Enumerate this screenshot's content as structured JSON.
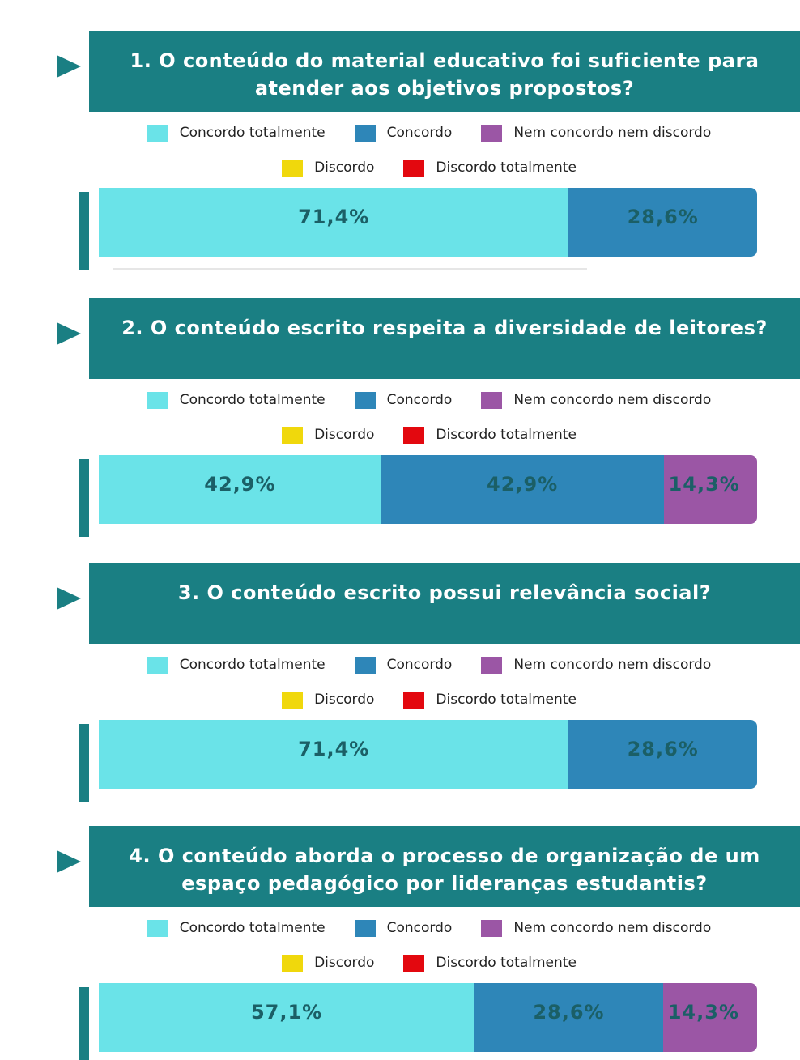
{
  "chart_data": [
    {
      "type": "stacked_bar",
      "title": "1. O conteúdo do material educativo foi suficiente para atender aos objetivos propostos?",
      "xlim": [
        0,
        100
      ],
      "series": [
        {
          "name": "Concordo totalmente",
          "color": "#6ae3e8",
          "values": [
            71.4
          ],
          "value_labels": [
            "71,4%"
          ]
        },
        {
          "name": "Concordo",
          "color": "#2e86b8",
          "values": [
            28.6
          ],
          "value_labels": [
            "28,6%"
          ]
        },
        {
          "name": "Nem concordo nem discordo",
          "color": "#9b56a5",
          "values": [
            0
          ]
        },
        {
          "name": "Discordo",
          "color": "#f0d80c",
          "values": [
            0
          ]
        },
        {
          "name": "Discordo totalmente",
          "color": "#e3080f",
          "values": [
            0
          ]
        }
      ]
    },
    {
      "type": "stacked_bar",
      "title": "2. O conteúdo escrito respeita a diversidade de leitores?",
      "xlim": [
        0,
        100
      ],
      "series": [
        {
          "name": "Concordo totalmente",
          "color": "#6ae3e8",
          "values": [
            42.9
          ],
          "value_labels": [
            "42,9%"
          ]
        },
        {
          "name": "Concordo",
          "color": "#2e86b8",
          "values": [
            42.9
          ],
          "value_labels": [
            "42,9%"
          ]
        },
        {
          "name": "Nem concordo nem discordo",
          "color": "#9b56a5",
          "values": [
            14.3
          ],
          "value_labels": [
            "14,3%"
          ]
        },
        {
          "name": "Discordo",
          "color": "#f0d80c",
          "values": [
            0
          ]
        },
        {
          "name": "Discordo totalmente",
          "color": "#e3080f",
          "values": [
            0
          ]
        }
      ]
    },
    {
      "type": "stacked_bar",
      "title": "3. O conteúdo escrito possui relevância social?",
      "xlim": [
        0,
        100
      ],
      "series": [
        {
          "name": "Concordo totalmente",
          "color": "#6ae3e8",
          "values": [
            71.4
          ],
          "value_labels": [
            "71,4%"
          ]
        },
        {
          "name": "Concordo",
          "color": "#2e86b8",
          "values": [
            28.6
          ],
          "value_labels": [
            "28,6%"
          ]
        },
        {
          "name": "Nem concordo nem discordo",
          "color": "#9b56a5",
          "values": [
            0
          ]
        },
        {
          "name": "Discordo",
          "color": "#f0d80c",
          "values": [
            0
          ]
        },
        {
          "name": "Discordo totalmente",
          "color": "#e3080f",
          "values": [
            0
          ]
        }
      ]
    },
    {
      "type": "stacked_bar",
      "title": "4. O conteúdo aborda o processo de organização de um espaço pedagógico por lideranças estudantis?",
      "xlim": [
        0,
        100
      ],
      "series": [
        {
          "name": "Concordo totalmente",
          "color": "#6ae3e8",
          "values": [
            57.1
          ],
          "value_labels": [
            "57,1%"
          ]
        },
        {
          "name": "Concordo",
          "color": "#2e86b8",
          "values": [
            28.6
          ],
          "value_labels": [
            "28,6%"
          ]
        },
        {
          "name": "Nem concordo nem discordo",
          "color": "#9b56a5",
          "values": [
            14.3
          ],
          "value_labels": [
            "14,3%"
          ]
        },
        {
          "name": "Discordo",
          "color": "#f0d80c",
          "values": [
            0
          ]
        },
        {
          "name": "Discordo totalmente",
          "color": "#e3080f",
          "values": [
            0
          ]
        }
      ]
    }
  ]
}
